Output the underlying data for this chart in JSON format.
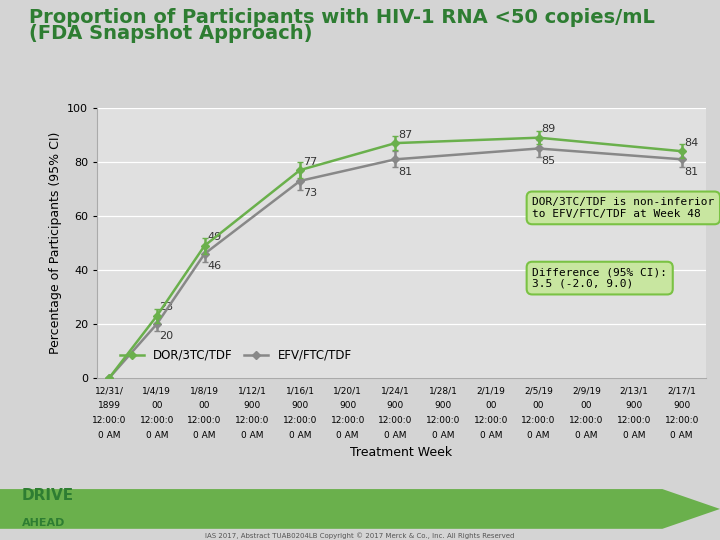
{
  "title_line1": "Proportion of Participants with HIV-1 RNA <50 copies/mL",
  "title_line2": "(FDA Snapshot Approach)",
  "xlabel": "Treatment Week",
  "ylabel": "Percentage of Participants (95% CI)",
  "ylim": [
    0,
    100
  ],
  "background_color": "#d4d4d4",
  "plot_bg_color": "#e0e0e0",
  "x_positions": [
    0,
    4,
    8,
    12,
    16,
    20,
    24,
    28,
    32,
    36,
    40,
    44,
    48
  ],
  "x_labels_line1": [
    "12/31/",
    "1/4/19",
    "1/8/19",
    "1/12/1",
    "1/16/1",
    "1/20/1",
    "1/24/1",
    "1/28/1",
    "2/1/19",
    "2/5/19",
    "2/9/19",
    "2/13/1",
    "2/17/1"
  ],
  "x_labels_line2": [
    "1899",
    "00",
    "00",
    "900",
    "900",
    "900",
    "900",
    "900",
    "00",
    "00",
    "00",
    "900",
    "900"
  ],
  "x_labels_line3": [
    "12:00:0",
    "12:00:0",
    "12:00:0",
    "12:00:0",
    "12:00:0",
    "12:00:0",
    "12:00:0",
    "12:00:0",
    "12:00:0",
    "12:00:0",
    "12:00:0",
    "12:00:0",
    "12:00:0"
  ],
  "x_labels_line4": [
    "0 AM",
    "0 AM",
    "0 AM",
    "0 AM",
    "0 AM",
    "0 AM",
    "0 AM",
    "0 AM",
    "0 AM",
    "0 AM",
    "0 AM",
    "0 AM",
    "0 AM"
  ],
  "dor_values": [
    0,
    23,
    49,
    null,
    77,
    null,
    87,
    null,
    null,
    89,
    null,
    null,
    84
  ],
  "efv_values": [
    0,
    20,
    46,
    null,
    73,
    null,
    81,
    null,
    null,
    85,
    null,
    null,
    81
  ],
  "dor_err_low": [
    0,
    2.5,
    3,
    null,
    3,
    null,
    2.5,
    null,
    null,
    2.5,
    null,
    null,
    2.5
  ],
  "dor_err_high": [
    0,
    2.5,
    3,
    null,
    3,
    null,
    2.5,
    null,
    null,
    2.5,
    null,
    null,
    2.5
  ],
  "efv_err_low": [
    0,
    2.5,
    3,
    null,
    3.5,
    null,
    3,
    null,
    null,
    3,
    null,
    null,
    3
  ],
  "efv_err_high": [
    0,
    2.5,
    3,
    null,
    3.5,
    null,
    3,
    null,
    null,
    3,
    null,
    null,
    3
  ],
  "dor_color": "#6ab04c",
  "efv_color": "#888888",
  "dor_label": "DOR/3TC/TDF",
  "efv_label": "EFV/FTC/TDF",
  "annotation_box1_text": "DOR/3TC/TDF is non-inferior\nto EFV/FTC/TDF at Week 48",
  "annotation_box2_text": "Difference (95% CI):\n3.5 (-2.0, 9.0)",
  "annotation_box_color": "#c8e6a0",
  "annotation_box_border": "#7ac244",
  "title_color": "#2e7d32",
  "title_fontsize": 14,
  "axis_fontsize": 8,
  "label_fontsize": 9,
  "yticks": [
    0,
    20,
    40,
    60,
    80,
    100
  ],
  "arrow_color": "#6ab04c",
  "copyright_text": "IAS 2017, Abstract TUAB0204LB Copyright © 2017 Merck & Co., Inc. All Rights Reserved"
}
